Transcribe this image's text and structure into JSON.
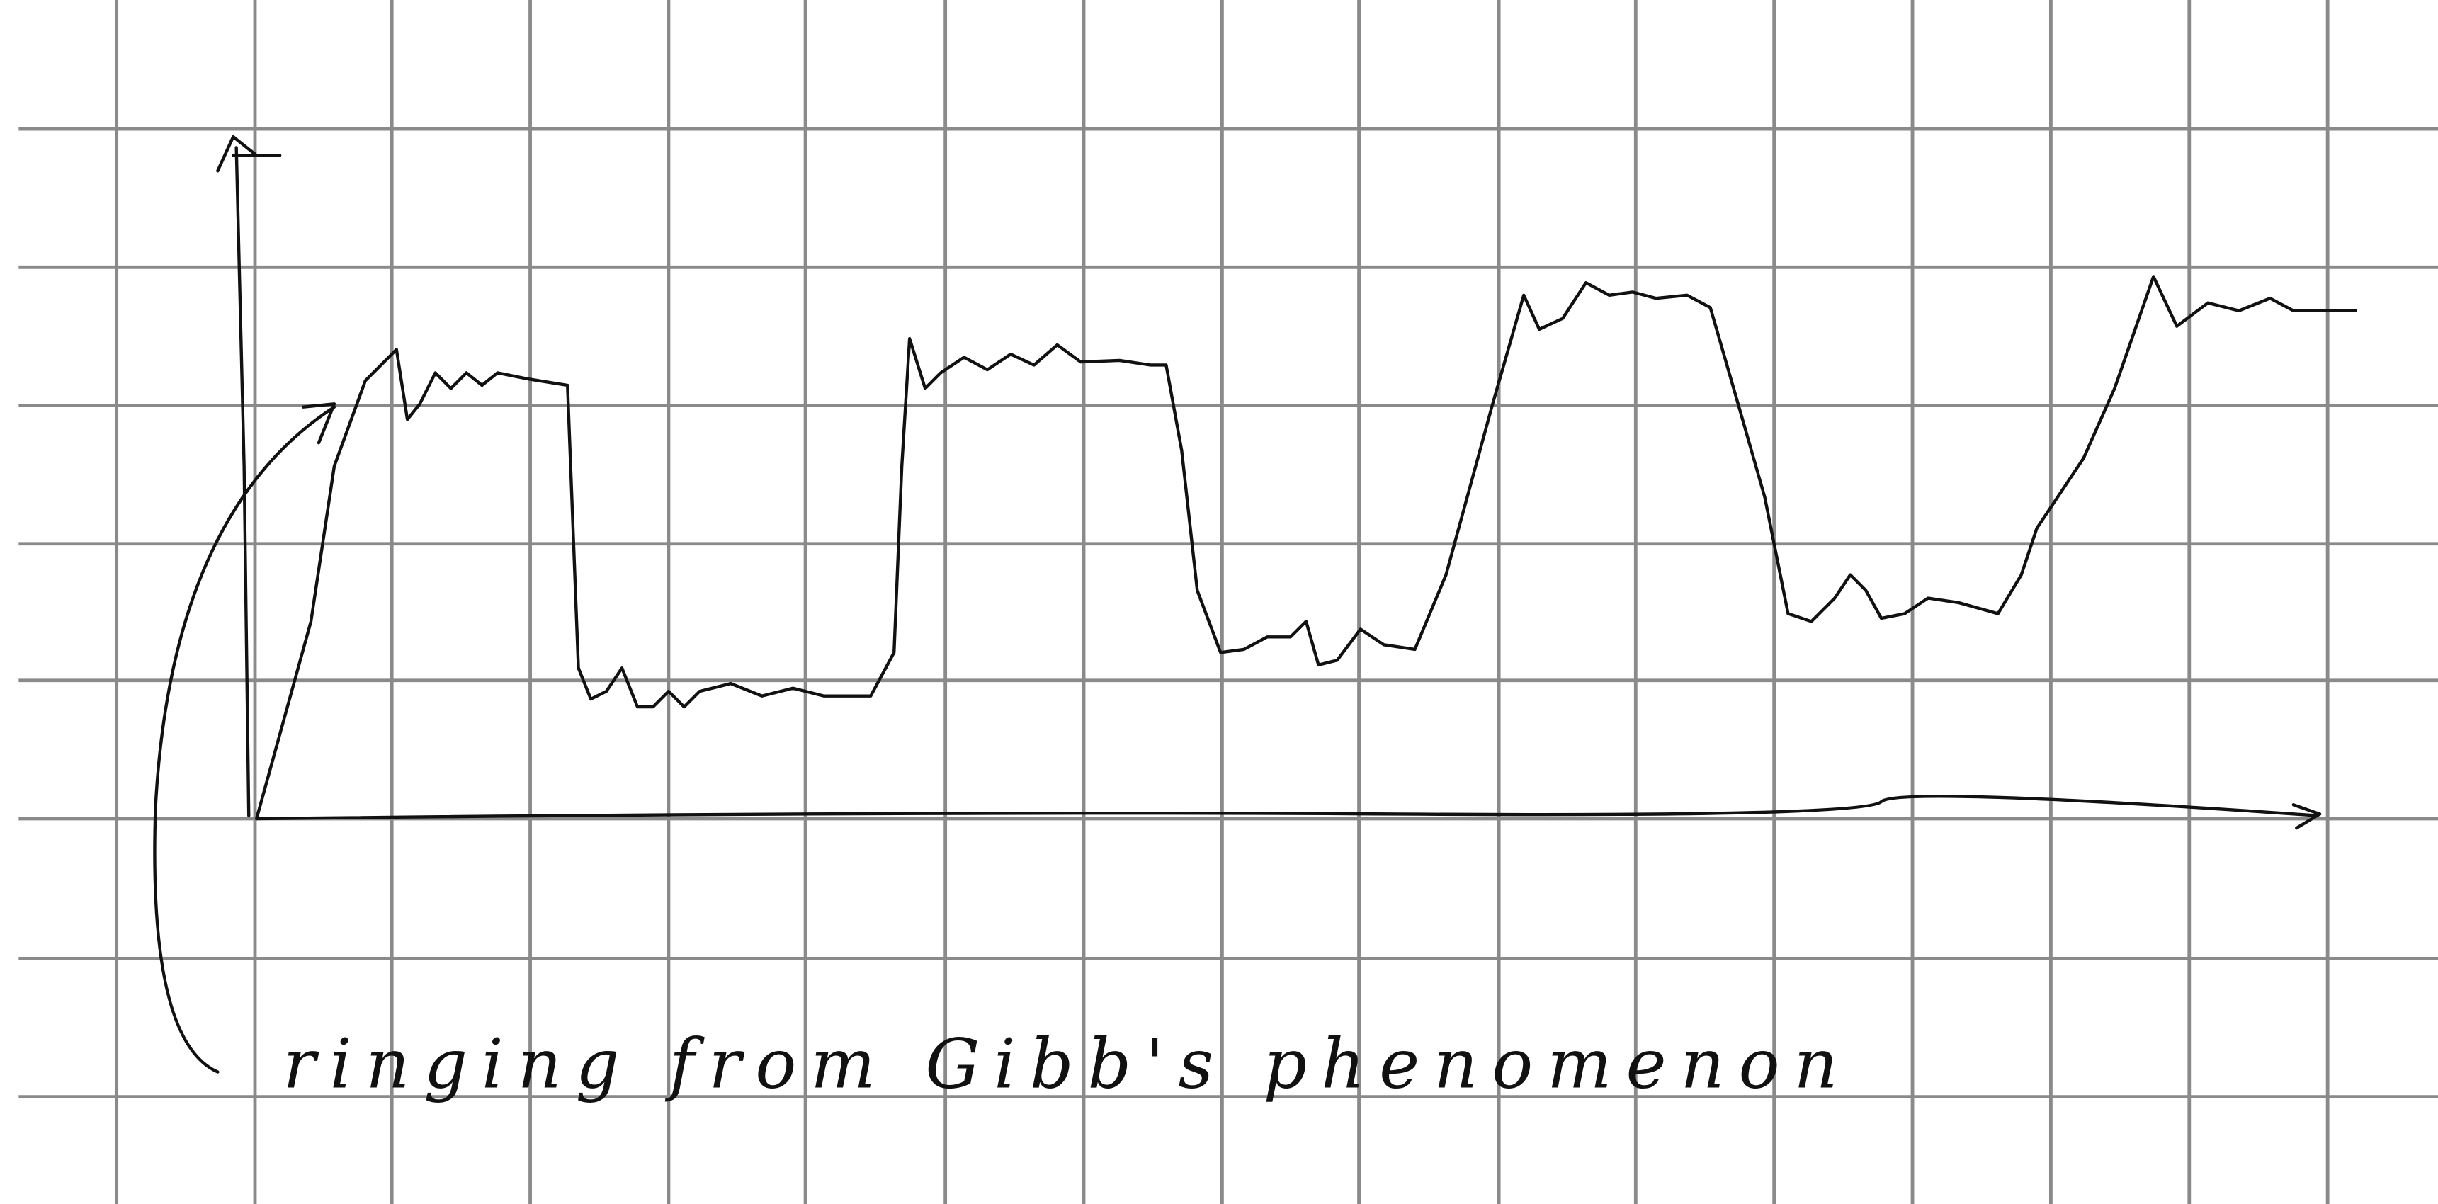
{
  "annotation": "ringing from Gibb's phenomenon"
}
